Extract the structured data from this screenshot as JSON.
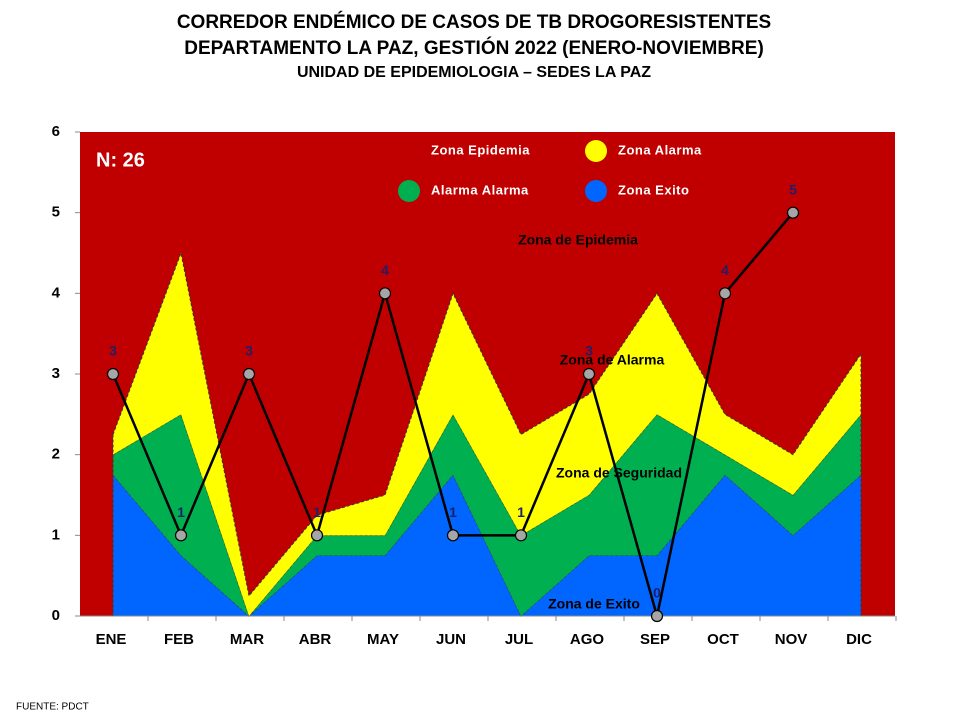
{
  "chart_data": {
    "type": "area",
    "title": [
      "CORREDOR ENDÉMICO DE CASOS DE TB DROGORESISTENTES",
      "DEPARTAMENTO  LA PAZ, GESTIÓN 2022 (ENERO-NOVIEMBRE)",
      "UNIDAD DE EPIDEMIOLOGIA – SEDES LA PAZ"
    ],
    "annotations": [
      "N: 26",
      "Zona de Epidemia",
      "Zona de Alarma",
      "Zona de Seguridad",
      "Zona de Exito"
    ],
    "source": "FUENTE:   PDCT",
    "categories": [
      "ENE",
      "FEB",
      "MAR",
      "ABR",
      "MAY",
      "JUN",
      "JUL",
      "AGO",
      "SEP",
      "OCT",
      "NOV",
      "DIC"
    ],
    "plot_background": {
      "name": "Zona Epidemia",
      "color": "#c00000"
    },
    "areas": [
      {
        "name": "Zona Exito",
        "color": "#0066ff",
        "values": [
          1.75,
          0.75,
          0,
          0.75,
          0.75,
          1.75,
          0,
          0.75,
          0.75,
          1.75,
          1.0,
          1.75
        ]
      },
      {
        "name": "Alarma  Alarma",
        "color": "#00b050",
        "values": [
          0.25,
          1.75,
          0,
          0.25,
          0.25,
          0.75,
          1,
          0.75,
          1.75,
          0.25,
          0.5,
          0.75
        ]
      },
      {
        "name": "Zona  Alarma",
        "color": "#ffff00",
        "values": [
          0.25,
          2,
          0.25,
          0.25,
          0.5,
          1.5,
          1.25,
          1.25,
          1.5,
          0.5,
          0.5,
          0.75
        ]
      }
    ],
    "legend_order": [
      2,
      1,
      0
    ],
    "line": {
      "color": "#000000",
      "marker_color": "#a6a6a6",
      "label_color": "#1f1f6b",
      "values": [
        3,
        1,
        3,
        1,
        4,
        1,
        1,
        3,
        0,
        4,
        5,
        null
      ]
    },
    "ylim": [
      0,
      6
    ],
    "yticks": [
      0,
      1,
      2,
      3,
      4,
      5,
      6
    ]
  }
}
